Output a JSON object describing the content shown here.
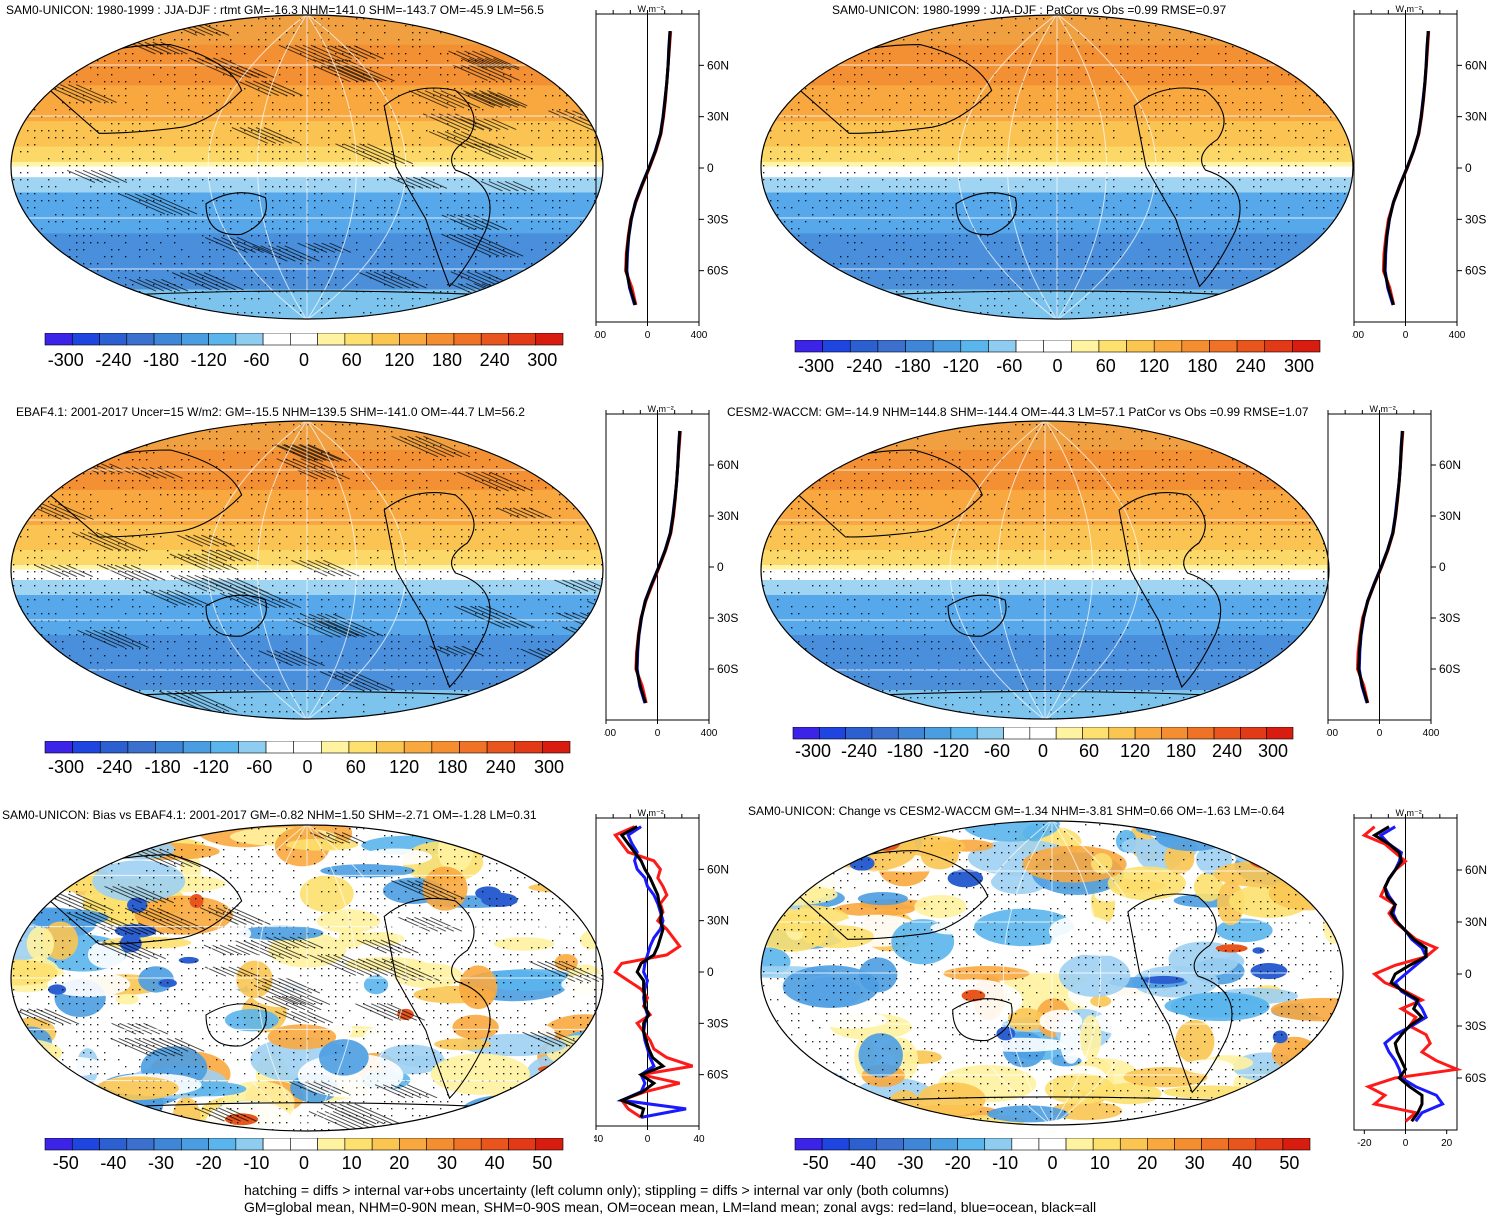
{
  "colorbars": {
    "full": {
      "colors": [
        "#3b23e8",
        "#1f45e0",
        "#2c5fd0",
        "#3b70cf",
        "#3f86d8",
        "#4b9de2",
        "#5ab5ec",
        "#8fcdf0",
        "#ffffff",
        "#ffffff",
        "#fff2a0",
        "#fde06e",
        "#fbc552",
        "#f8a83f",
        "#f58e31",
        "#f07226",
        "#e9561d",
        "#e23a16",
        "#d81c10"
      ],
      "labels": [
        "-300",
        "-240",
        "-180",
        "-120",
        "-60",
        "0",
        "60",
        "120",
        "180",
        "240",
        "300"
      ]
    },
    "diff": {
      "colors": [
        "#3b23e8",
        "#1f45e0",
        "#2c5fd0",
        "#3b70cf",
        "#3f86d8",
        "#4b9de2",
        "#5ab5ec",
        "#8fcdf0",
        "#ffffff",
        "#ffffff",
        "#fff2a0",
        "#fde06e",
        "#fbc552",
        "#f8a83f",
        "#f58e31",
        "#f07226",
        "#e9561d",
        "#e23a16",
        "#d81c10"
      ],
      "labels": [
        "-50",
        "-40",
        "-30",
        "-20",
        "-10",
        "0",
        "10",
        "20",
        "30",
        "40",
        "50"
      ]
    }
  },
  "zonal_axis": {
    "unit": "W m⁻²",
    "lat_labels": [
      "60N",
      "30N",
      "0",
      "30S",
      "60S"
    ],
    "full_x_labels": [
      "-400",
      "0",
      "400"
    ],
    "diff_left_x_labels": [
      "-40",
      "0",
      "40"
    ],
    "diff_right_x_labels": [
      "-20",
      "0",
      "20"
    ]
  },
  "series_colors": {
    "land": "#ff1a1a",
    "ocean": "#1a1aff",
    "all": "#000000"
  },
  "panels": [
    {
      "id": "p1",
      "kind": "full",
      "title": "SAM0-UNICON: 1980-1999 : JJA-DJF : rtmt GM=-16.3 NHM=141.0 SHM=-143.7 OM=-45.9 LM=56.5"
    },
    {
      "id": "p2",
      "kind": "full",
      "title": "SAM0-UNICON: 1980-1999 : JJA-DJF : PatCor vs Obs =0.99 RMSE=0.97"
    },
    {
      "id": "p3",
      "kind": "full",
      "title": "EBAF4.1: 2001-2017 Uncer=15 W/m2: GM=-15.5 NHM=139.5 SHM=-141.0 OM=-44.7 LM=56.2"
    },
    {
      "id": "p4",
      "kind": "full",
      "title": "CESM2-WACCM: GM=-14.9 NHM=144.8 SHM=-144.4 OM=-44.3 LM=57.1 PatCor vs Obs =0.99 RMSE=1.07"
    },
    {
      "id": "p5",
      "kind": "diff",
      "title": "SAM0-UNICON: Bias vs EBAF4.1: 2001-2017 GM=-0.82 NHM=1.50 SHM=-2.71 OM=-1.28 LM=0.31"
    },
    {
      "id": "p6",
      "kind": "diff",
      "title": "SAM0-UNICON: Change vs CESM2-WACCM GM=-1.34 NHM=-3.81 SHM=0.66 OM=-1.63 LM=-0.64"
    }
  ],
  "footer": {
    "line1": "hatching = diffs > internal var+obs uncertainty (left column only); stippling = diffs > internal var only (both columns)",
    "line2": "GM=global mean, NHM=0-90N mean, SHM=0-90S mean, OM=ocean mean, LM=land mean; zonal avgs: red=land, blue=ocean, black=all"
  },
  "chart_data": [
    {
      "type": "heatmap",
      "title": "SAM0-UNICON: 1980-1999 : JJA-DJF : rtmt GM=-16.3 NHM=141.0 SHM=-143.7 OM=-45.9 LM=56.5",
      "projection": "robinson",
      "hatching": true,
      "stippling": true,
      "colorbar": {
        "min": -300,
        "max": 300,
        "ticks": [
          -300,
          -240,
          -180,
          -120,
          -60,
          0,
          60,
          120,
          180,
          240,
          300
        ]
      },
      "zonal_mean": {
        "xlim": [
          -400,
          400
        ],
        "xticks": [
          -400,
          0,
          400
        ],
        "ylabels": [
          "60N",
          "30N",
          "0",
          "30S",
          "60S"
        ],
        "lat": [
          80,
          70,
          60,
          50,
          40,
          30,
          20,
          10,
          0,
          -10,
          -20,
          -30,
          -40,
          -50,
          -60,
          -70,
          -80
        ],
        "series": [
          {
            "name": "land",
            "values": [
              180,
              170,
              160,
              150,
              140,
              125,
              105,
              65,
              15,
              -40,
              -90,
              -130,
              -150,
              -165,
              -170,
              -120,
              -90
            ]
          },
          {
            "name": "ocean",
            "values": [
              175,
              165,
              160,
              150,
              135,
              120,
              100,
              60,
              10,
              -45,
              -95,
              -125,
              -145,
              -155,
              -160,
              -140,
              -100
            ]
          },
          {
            "name": "all",
            "values": [
              175,
              168,
              160,
              150,
              137,
              122,
              102,
              62,
              12,
              -43,
              -93,
              -127,
              -147,
              -160,
              -165,
              -135,
              -95
            ]
          }
        ]
      }
    },
    {
      "type": "heatmap",
      "title": "SAM0-UNICON: 1980-1999 : JJA-DJF : PatCor vs Obs =0.99 RMSE=0.97",
      "projection": "robinson",
      "hatching": false,
      "stippling": true,
      "colorbar": {
        "min": -300,
        "max": 300,
        "ticks": [
          -300,
          -240,
          -180,
          -120,
          -60,
          0,
          60,
          120,
          180,
          240,
          300
        ]
      },
      "zonal_mean": {
        "xlim": [
          -400,
          400
        ],
        "xticks": [
          -400,
          0,
          400
        ],
        "ylabels": [
          "60N",
          "30N",
          "0",
          "30S",
          "60S"
        ],
        "lat": [
          80,
          70,
          60,
          50,
          40,
          30,
          20,
          10,
          0,
          -10,
          -20,
          -30,
          -40,
          -50,
          -60,
          -70,
          -80
        ],
        "series": [
          {
            "name": "land",
            "values": [
              180,
              172,
              162,
              152,
              140,
              125,
              104,
              64,
              14,
              -41,
              -92,
              -133,
              -152,
              -167,
              -172,
              -122,
              -92
            ]
          },
          {
            "name": "ocean",
            "values": [
              176,
              166,
              160,
              151,
              136,
              121,
              101,
              61,
              11,
              -44,
              -94,
              -124,
              -144,
              -154,
              -158,
              -138,
              -98
            ]
          },
          {
            "name": "all",
            "values": [
              177,
              168,
              161,
              151,
              138,
              122,
              102,
              62,
              12,
              -43,
              -93,
              -126,
              -146,
              -158,
              -163,
              -133,
              -94
            ]
          }
        ]
      }
    },
    {
      "type": "heatmap",
      "title": "EBAF4.1: 2001-2017 Uncer=15 W/m2: GM=-15.5 NHM=139.5 SHM=-141.0 OM=-44.7 LM=56.2",
      "projection": "robinson",
      "hatching": true,
      "stippling": true,
      "colorbar": {
        "min": -300,
        "max": 300,
        "ticks": [
          -300,
          -240,
          -180,
          -120,
          -60,
          0,
          60,
          120,
          180,
          240,
          300
        ]
      },
      "zonal_mean": {
        "xlim": [
          -400,
          400
        ],
        "xticks": [
          -400,
          0,
          400
        ],
        "ylabels": [
          "60N",
          "30N",
          "0",
          "30S",
          "60S"
        ],
        "lat": [
          80,
          70,
          60,
          50,
          40,
          30,
          20,
          10,
          0,
          -10,
          -20,
          -30,
          -40,
          -50,
          -60,
          -70,
          -80
        ],
        "series": [
          {
            "name": "land",
            "values": [
              178,
              168,
              158,
              148,
              138,
              124,
              104,
              64,
              14,
              -40,
              -90,
              -128,
              -148,
              -162,
              -168,
              -118,
              -88
            ]
          },
          {
            "name": "ocean",
            "values": [
              172,
              163,
              158,
              149,
              134,
              119,
              99,
              59,
              9,
              -46,
              -96,
              -124,
              -144,
              -154,
              -158,
              -138,
              -98
            ]
          },
          {
            "name": "all",
            "values": [
              174,
              165,
              158,
              148,
              136,
              121,
              101,
              61,
              11,
              -44,
              -94,
              -126,
              -146,
              -158,
              -163,
              -133,
              -93
            ]
          }
        ]
      }
    },
    {
      "type": "heatmap",
      "title": "CESM2-WACCM: GM=-14.9 NHM=144.8 SHM=-144.4 OM=-44.3 LM=57.1 PatCor vs Obs =0.99 RMSE=1.07",
      "projection": "robinson",
      "hatching": false,
      "stippling": true,
      "colorbar": {
        "min": -300,
        "max": 300,
        "ticks": [
          -300,
          -240,
          -180,
          -120,
          -60,
          0,
          60,
          120,
          180,
          240,
          300
        ]
      },
      "zonal_mean": {
        "xlim": [
          -400,
          400
        ],
        "xticks": [
          -400,
          0,
          400
        ],
        "ylabels": [
          "60N",
          "30N",
          "0",
          "30S",
          "60S"
        ],
        "lat": [
          80,
          70,
          60,
          50,
          40,
          30,
          20,
          10,
          0,
          -10,
          -20,
          -30,
          -40,
          -50,
          -60,
          -70,
          -80
        ],
        "series": [
          {
            "name": "land",
            "values": [
              182,
              172,
              163,
              153,
              141,
              126,
              106,
              66,
              16,
              -39,
              -89,
              -131,
              -151,
              -166,
              -171,
              -121,
              -91
            ]
          },
          {
            "name": "ocean",
            "values": [
              177,
              167,
              162,
              152,
              137,
              122,
              102,
              62,
              12,
              -43,
              -93,
              -123,
              -143,
              -153,
              -157,
              -137,
              -97
            ]
          },
          {
            "name": "all",
            "values": [
              178,
              169,
              162,
              152,
              139,
              124,
              104,
              64,
              14,
              -41,
              -91,
              -125,
              -145,
              -157,
              -162,
              -132,
              -93
            ]
          }
        ]
      }
    },
    {
      "type": "heatmap",
      "title": "SAM0-UNICON: Bias vs EBAF4.1: 2001-2017 GM=-0.82 NHM=1.50 SHM=-2.71 OM=-1.28 LM=0.31",
      "projection": "robinson",
      "hatching": true,
      "stippling": true,
      "colorbar": {
        "min": -50,
        "max": 50,
        "ticks": [
          -50,
          -40,
          -30,
          -20,
          -10,
          0,
          10,
          20,
          30,
          40,
          50
        ]
      },
      "zonal_mean": {
        "xlim": [
          -40,
          40
        ],
        "xticks": [
          -40,
          0,
          40
        ],
        "ylabels": [
          "60N",
          "30N",
          "0",
          "30S",
          "60S"
        ],
        "lat": [
          85,
          80,
          75,
          70,
          65,
          60,
          55,
          50,
          45,
          40,
          35,
          30,
          25,
          20,
          15,
          10,
          5,
          0,
          -5,
          -10,
          -15,
          -20,
          -25,
          -30,
          -35,
          -40,
          -45,
          -50,
          -55,
          -60,
          -65,
          -70,
          -75,
          -80,
          -85
        ],
        "series": [
          {
            "name": "land",
            "values": [
              -10,
              -25,
              -20,
              -15,
              5,
              10,
              8,
              12,
              15,
              10,
              12,
              8,
              15,
              20,
              25,
              15,
              -20,
              -25,
              -15,
              -5,
              0,
              -3,
              2,
              -8,
              -3,
              2,
              5,
              15,
              35,
              -5,
              25,
              -2,
              -20,
              -15,
              -5
            ]
          },
          {
            "name": "ocean",
            "values": [
              -5,
              -15,
              -12,
              -8,
              -10,
              -8,
              -2,
              0,
              5,
              8,
              10,
              12,
              10,
              5,
              2,
              0,
              -2,
              -3,
              0,
              -2,
              -3,
              -2,
              0,
              -2,
              -3,
              -2,
              0,
              2,
              5,
              -5,
              -2,
              -5,
              -20,
              30,
              -5
            ]
          },
          {
            "name": "all",
            "values": [
              -8,
              -20,
              -15,
              -10,
              -5,
              -2,
              2,
              5,
              8,
              9,
              11,
              10,
              12,
              10,
              8,
              5,
              -5,
              -8,
              -3,
              -3,
              -2,
              -2,
              1,
              -3,
              -3,
              -1,
              1,
              4,
              12,
              -5,
              5,
              -4,
              -20,
              -3,
              -5
            ]
          }
        ]
      }
    },
    {
      "type": "heatmap",
      "title": "SAM0-UNICON: Change vs CESM2-WACCM GM=-1.34 NHM=-3.81 SHM=0.66 OM=-1.63 LM=-0.64",
      "projection": "robinson",
      "hatching": false,
      "stippling": true,
      "colorbar": {
        "min": -50,
        "max": 50,
        "ticks": [
          -50,
          -40,
          -30,
          -20,
          -10,
          0,
          10,
          20,
          30,
          40,
          50
        ]
      },
      "zonal_mean": {
        "xlim": [
          -25,
          25
        ],
        "xticks": [
          -20,
          0,
          20
        ],
        "ylabels": [
          "60N",
          "30N",
          "0",
          "30S",
          "60S"
        ],
        "lat": [
          85,
          80,
          75,
          70,
          65,
          60,
          55,
          50,
          45,
          40,
          35,
          30,
          25,
          20,
          15,
          10,
          5,
          0,
          -5,
          -10,
          -15,
          -20,
          -25,
          -30,
          -35,
          -40,
          -45,
          -50,
          -55,
          -60,
          -65,
          -70,
          -75,
          -80,
          -85
        ],
        "series": [
          {
            "name": "land",
            "values": [
              -15,
              -20,
              -10,
              -5,
              0,
              -5,
              -8,
              -10,
              -12,
              -5,
              -8,
              -5,
              0,
              5,
              15,
              10,
              -5,
              -15,
              -10,
              0,
              8,
              -2,
              5,
              2,
              10,
              12,
              8,
              15,
              25,
              -5,
              -18,
              -10,
              -15,
              5,
              0
            ]
          },
          {
            "name": "ocean",
            "values": [
              -5,
              -12,
              -8,
              -2,
              -3,
              -5,
              -8,
              -10,
              -8,
              -5,
              -6,
              -4,
              0,
              3,
              8,
              10,
              5,
              0,
              -5,
              -2,
              5,
              8,
              10,
              3,
              -5,
              -10,
              -8,
              -5,
              -3,
              -2,
              5,
              15,
              18,
              8,
              5
            ]
          },
          {
            "name": "all",
            "values": [
              -8,
              -15,
              -8,
              -3,
              -2,
              -5,
              -8,
              -10,
              -9,
              -5,
              -7,
              -4,
              0,
              4,
              10,
              10,
              2,
              -5,
              -7,
              -1,
              6,
              4,
              8,
              2,
              -2,
              -5,
              -4,
              -2,
              0,
              -3,
              2,
              8,
              8,
              6,
              3
            ]
          }
        ]
      }
    }
  ]
}
